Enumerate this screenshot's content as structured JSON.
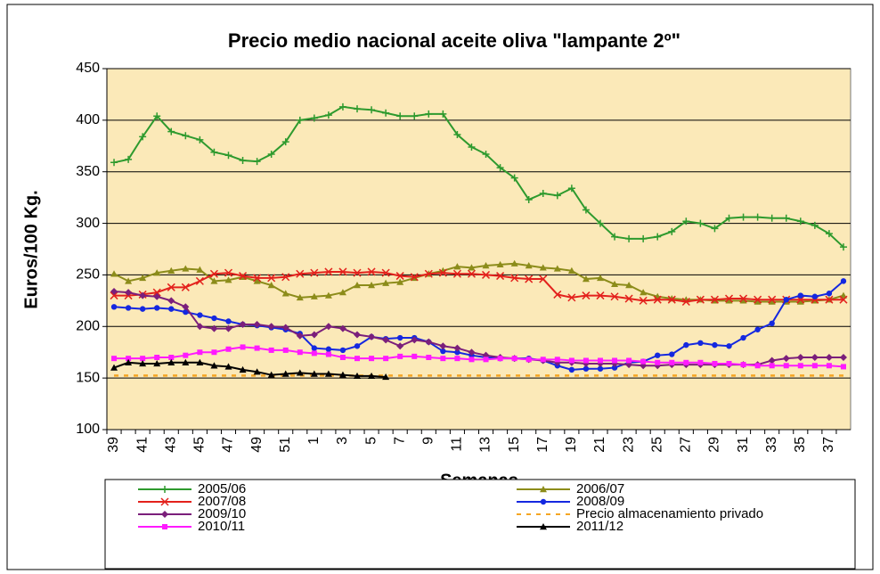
{
  "chart_data": {
    "type": "line",
    "title": "Precio medio nacional  aceite oliva \"lampante 2º\"",
    "x_label": "Semanas",
    "y_label": "Euros/100 Kg.",
    "categories": [
      "39",
      null,
      "41",
      null,
      "43",
      null,
      "45",
      null,
      "47",
      null,
      "49",
      null,
      "51",
      null,
      "1",
      null,
      "3",
      null,
      "5",
      null,
      "7",
      null,
      "9",
      null,
      "11",
      null,
      "13",
      null,
      "15",
      null,
      "17",
      null,
      "19",
      null,
      "21",
      null,
      "23",
      null,
      "25",
      null,
      "27",
      null,
      "29",
      null,
      "31",
      null,
      "33",
      null,
      "35",
      null,
      "37",
      null
    ],
    "ylim": [
      100,
      450
    ],
    "yticks": [
      100,
      150,
      200,
      250,
      300,
      350,
      400,
      450
    ],
    "grid": true,
    "legend": "bottom",
    "series": [
      {
        "name": "2005/06",
        "color": "#2e9a2e",
        "marker": "plus",
        "values": [
          359,
          362,
          384,
          404,
          389,
          385,
          381,
          369,
          366,
          361,
          360,
          367,
          379,
          400,
          402,
          405,
          413,
          411,
          410,
          407,
          404,
          404,
          406,
          406,
          386,
          374,
          367,
          354,
          344,
          323,
          329,
          327,
          334,
          313,
          300,
          287,
          285,
          285,
          287,
          292,
          302,
          300,
          295,
          305,
          306,
          306,
          305,
          305,
          302,
          298,
          290,
          277
        ]
      },
      {
        "name": "2006/07",
        "color": "#8c8c1a",
        "marker": "triangle",
        "values": [
          251,
          244,
          247,
          252,
          254,
          256,
          255,
          244,
          245,
          248,
          244,
          240,
          232,
          228,
          229,
          230,
          233,
          240,
          240,
          242,
          243,
          247,
          251,
          254,
          258,
          257,
          259,
          260,
          261,
          259,
          257,
          256,
          254,
          246,
          247,
          241,
          240,
          233,
          229,
          227,
          226,
          226,
          225,
          225,
          225,
          224,
          224,
          224,
          224,
          225,
          226,
          230
        ]
      },
      {
        "name": "2007/08",
        "color": "#e3211c",
        "marker": "x",
        "values": [
          230,
          230,
          231,
          233,
          238,
          238,
          244,
          251,
          252,
          249,
          247,
          247,
          248,
          251,
          252,
          253,
          253,
          252,
          253,
          252,
          249,
          248,
          251,
          252,
          251,
          251,
          250,
          249,
          247,
          246,
          246,
          231,
          228,
          230,
          230,
          229,
          227,
          225,
          226,
          226,
          224,
          226,
          226,
          227,
          227,
          226,
          226,
          226,
          226,
          226,
          226,
          226
        ]
      },
      {
        "name": "2008/09",
        "color": "#1428e0",
        "marker": "circle",
        "values": [
          219,
          218,
          217,
          218,
          217,
          214,
          211,
          208,
          205,
          202,
          201,
          199,
          197,
          193,
          179,
          178,
          177,
          181,
          190,
          188,
          189,
          189,
          185,
          176,
          175,
          172,
          170,
          169,
          169,
          169,
          167,
          162,
          158,
          159,
          159,
          160,
          165,
          166,
          172,
          173,
          182,
          184,
          182,
          181,
          189,
          197,
          203,
          226,
          230,
          229,
          232,
          244
        ]
      },
      {
        "name": "2009/10",
        "color": "#7b1f7b",
        "marker": "diamond",
        "values": [
          234,
          233,
          230,
          229,
          225,
          219,
          200,
          198,
          198,
          202,
          202,
          200,
          199,
          191,
          192,
          200,
          198,
          192,
          190,
          187,
          181,
          187,
          185,
          181,
          179,
          175,
          172,
          170,
          169,
          168,
          167,
          165,
          165,
          164,
          164,
          164,
          163,
          162,
          162,
          163,
          163,
          163,
          163,
          163,
          163,
          163,
          167,
          169,
          170,
          170,
          170,
          170
        ]
      },
      {
        "name": "Precio almacenamiento privado",
        "color": "#f5a623",
        "marker": "none",
        "dashed": true,
        "values": [
          152.4,
          152.4,
          152.4,
          152.4,
          152.4,
          152.4,
          152.4,
          152.4,
          152.4,
          152.4,
          152.4,
          152.4,
          152.4,
          152.4,
          152.4,
          152.4,
          152.4,
          152.4,
          152.4,
          152.4,
          152.4,
          152.4,
          152.4,
          152.4,
          152.4,
          152.4,
          152.4,
          152.4,
          152.4,
          152.4,
          152.4,
          152.4,
          152.4,
          152.4,
          152.4,
          152.4,
          152.4,
          152.4,
          152.4,
          152.4,
          152.4,
          152.4,
          152.4,
          152.4,
          152.4,
          152.4,
          152.4,
          152.4,
          152.4,
          152.4,
          152.4,
          152.4
        ]
      },
      {
        "name": "2010/11",
        "color": "#ff1aff",
        "marker": "square",
        "values": [
          169,
          169,
          169,
          170,
          170,
          172,
          175,
          175,
          178,
          180,
          179,
          177,
          177,
          175,
          174,
          173,
          170,
          169,
          169,
          169,
          171,
          171,
          170,
          169,
          169,
          168,
          168,
          169,
          169,
          168,
          168,
          168,
          167,
          167,
          167,
          167,
          167,
          166,
          165,
          165,
          165,
          165,
          164,
          164,
          163,
          162,
          162,
          162,
          162,
          162,
          162,
          161
        ]
      },
      {
        "name": "2011/12",
        "color": "#000000",
        "marker": "triangle",
        "values": [
          160,
          165,
          164,
          164,
          165,
          165,
          165,
          162,
          161,
          158,
          156,
          153,
          154,
          155,
          154,
          154,
          153,
          152,
          152,
          151,
          null,
          null,
          null,
          null,
          null,
          null,
          null,
          null,
          null,
          null,
          null,
          null,
          null,
          null,
          null,
          null,
          null,
          null,
          null,
          null,
          null,
          null,
          null,
          null,
          null,
          null,
          null,
          null,
          null,
          null,
          null,
          null
        ]
      }
    ]
  }
}
